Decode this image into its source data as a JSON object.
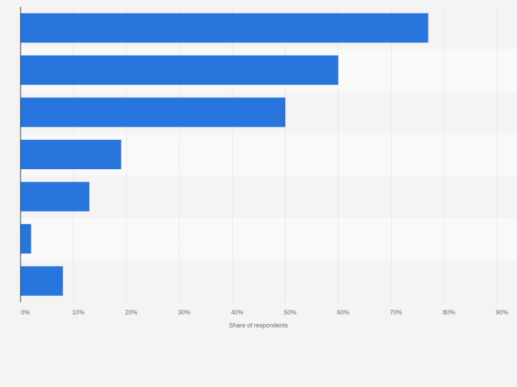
{
  "chart_data": {
    "type": "bar",
    "orientation": "horizontal",
    "title": "",
    "xlabel": "Share of respondents",
    "ylabel": "",
    "categories": [
      "",
      "",
      "",
      "",
      "",
      "",
      ""
    ],
    "values": [
      77,
      60,
      50,
      19,
      13,
      2,
      8
    ],
    "xlim": [
      0,
      90
    ],
    "ticks": [
      "0%",
      "10%",
      "20%",
      "30%",
      "40%",
      "50%",
      "60%",
      "70%",
      "80%",
      "90%"
    ],
    "grid": true,
    "legend": "none",
    "colors": {
      "bar": "#2876dd",
      "background": "#f4f4f4",
      "band_alt": "#f9f9f9",
      "grid": "#d6d6d6",
      "axis": "#333333",
      "text": "#666666"
    }
  }
}
